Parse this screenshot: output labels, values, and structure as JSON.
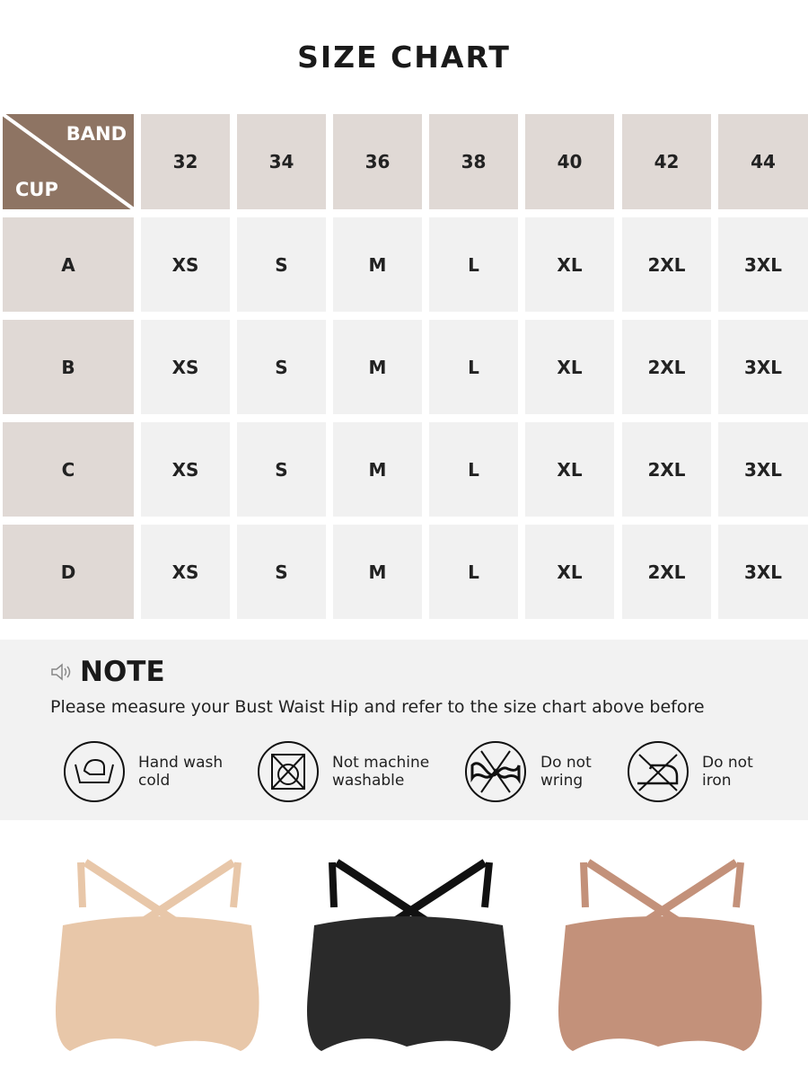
{
  "title": "SIZE CHART",
  "corner": {
    "band": "BAND",
    "cup": "CUP"
  },
  "bands": [
    "32",
    "34",
    "36",
    "38",
    "40",
    "42",
    "44"
  ],
  "rows": [
    {
      "cup": "A",
      "sizes": [
        "XS",
        "S",
        "M",
        "L",
        "XL",
        "2XL",
        "3XL"
      ]
    },
    {
      "cup": "B",
      "sizes": [
        "XS",
        "S",
        "M",
        "L",
        "XL",
        "2XL",
        "3XL"
      ]
    },
    {
      "cup": "C",
      "sizes": [
        "XS",
        "S",
        "M",
        "L",
        "XL",
        "2XL",
        "3XL"
      ]
    },
    {
      "cup": "D",
      "sizes": [
        "XS",
        "S",
        "M",
        "L",
        "XL",
        "2XL",
        "3XL"
      ]
    }
  ],
  "note": {
    "heading": "NOTE",
    "icon": "speaker-icon",
    "text": "Please measure your Bust Waist Hip and refer to the size chart above before",
    "care": [
      {
        "icon": "hand-wash-icon",
        "line1": "Hand wash",
        "line2": "cold"
      },
      {
        "icon": "no-machine-wash-icon",
        "line1": "Not machine",
        "line2": "washable"
      },
      {
        "icon": "no-wring-icon",
        "line1": "Do not",
        "line2": "wring"
      },
      {
        "icon": "no-iron-icon",
        "line1": "Do not",
        "line2": "iron"
      }
    ]
  },
  "products": [
    {
      "color": "#e8c7a9"
    },
    {
      "color": "#2a2a2a"
    },
    {
      "color": "#c3917a"
    }
  ],
  "colors": {
    "header": "#8e7463",
    "headerCell": "#e0d9d5",
    "bodyCell": "#f1f1f1"
  }
}
